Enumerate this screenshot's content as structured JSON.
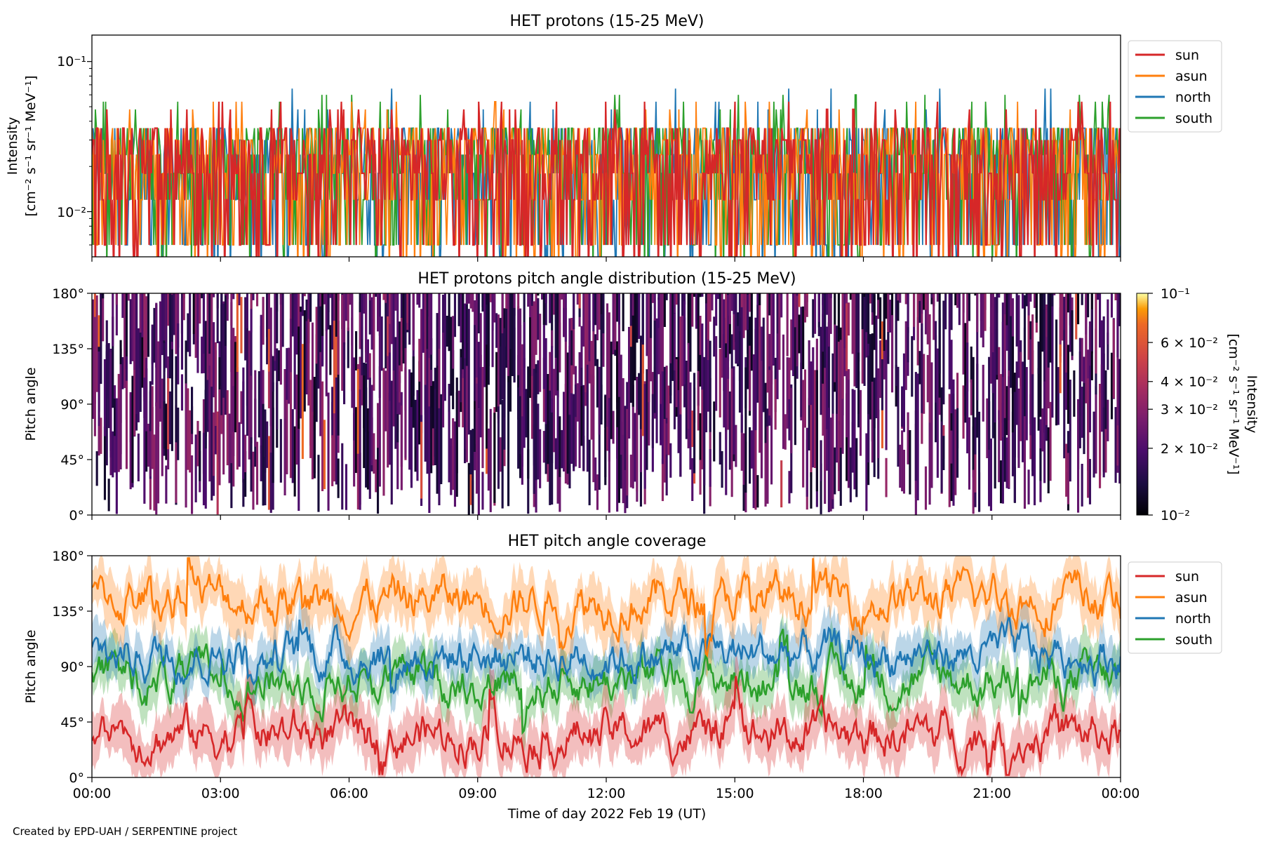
{
  "footer": "Created by EPD-UAH / SERPENTINE project",
  "colors": {
    "sun": "#d62728",
    "asun": "#ff7f0e",
    "north": "#1f77b4",
    "south": "#2ca02c"
  },
  "chart_data": [
    {
      "type": "line",
      "title": "HET protons (15-25 MeV)",
      "ylabel_lines": [
        "Intensity",
        "[cm⁻² s⁻¹ sr⁻¹ MeV⁻¹]"
      ],
      "yscale": "log",
      "ylim": [
        0.005,
        0.15
      ],
      "yticks": [
        "10⁻¹",
        "10⁻²"
      ],
      "legend": {
        "placement": "outside-right-top",
        "entries": [
          "sun",
          "asun",
          "north",
          "south"
        ]
      },
      "x_range_hours": [
        0,
        24
      ],
      "series": [
        {
          "name": "sun",
          "levels": [
            0.006,
            0.012,
            0.018,
            0.024,
            0.03,
            0.036
          ],
          "spikes": [
            0.048,
            0.054
          ]
        },
        {
          "name": "asun",
          "levels": [
            0.006,
            0.012,
            0.018,
            0.024,
            0.03,
            0.036
          ],
          "spikes": [
            0.048,
            0.054
          ]
        },
        {
          "name": "north",
          "levels": [
            0.006,
            0.012,
            0.018,
            0.024,
            0.03,
            0.036
          ],
          "spikes": [
            0.048,
            0.054,
            0.066
          ]
        },
        {
          "name": "south",
          "levels": [
            0.006,
            0.012,
            0.018,
            0.024,
            0.03,
            0.036
          ],
          "spikes": [
            0.048,
            0.054,
            0.06
          ]
        }
      ]
    },
    {
      "type": "heatmap",
      "title": "HET protons pitch angle distribution (15-25 MeV)",
      "ylabel": "Pitch angle",
      "ylim": [
        0,
        180
      ],
      "yticks": [
        "0°",
        "45°",
        "90°",
        "135°",
        "180°"
      ],
      "colorbar": {
        "label_lines": [
          "Intensity",
          "[cm⁻² s⁻¹ sr⁻¹ MeV⁻¹]"
        ],
        "scale": "log",
        "range": [
          0.01,
          0.1
        ],
        "ticks": [
          {
            "value": 0.1,
            "label": "10⁻¹"
          },
          {
            "value": 0.06,
            "label": "6 × 10⁻²"
          },
          {
            "value": 0.04,
            "label": "4 × 10⁻²"
          },
          {
            "value": 0.03,
            "label": "3 × 10⁻²"
          },
          {
            "value": 0.02,
            "label": "2 × 10⁻²"
          },
          {
            "value": 0.01,
            "label": "10⁻²"
          }
        ],
        "colormap": "inferno"
      }
    },
    {
      "type": "line",
      "title": "HET pitch angle coverage",
      "ylabel": "Pitch angle",
      "ylim": [
        0,
        180
      ],
      "yticks": [
        "0°",
        "45°",
        "90°",
        "135°",
        "180°"
      ],
      "xlabel": "Time of day 2022 Feb 19 (UT)",
      "xticks": [
        "00:00",
        "03:00",
        "06:00",
        "09:00",
        "12:00",
        "15:00",
        "18:00",
        "21:00",
        "00:00"
      ],
      "x_range_hours": [
        0,
        24
      ],
      "legend": {
        "placement": "outside-right-top",
        "entries": [
          "sun",
          "asun",
          "north",
          "south"
        ]
      },
      "series": [
        {
          "name": "sun",
          "mean_deg": 35,
          "band_deg": 18
        },
        {
          "name": "asun",
          "mean_deg": 145,
          "band_deg": 18
        },
        {
          "name": "north",
          "mean_deg": 100,
          "band_deg": 15
        },
        {
          "name": "south",
          "mean_deg": 80,
          "band_deg": 15
        }
      ]
    }
  ]
}
